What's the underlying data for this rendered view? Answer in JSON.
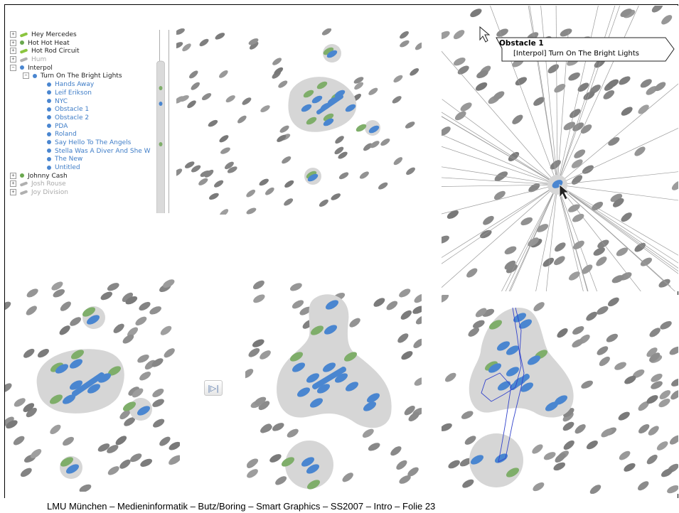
{
  "tree": {
    "items": [
      {
        "label": "Hey Mercedes",
        "icon": "bar-icon",
        "color": "#8bc53f",
        "expander": "+",
        "level": 0,
        "style": "normal"
      },
      {
        "label": "Hot Hot Heat",
        "icon": "dot-icon",
        "color": "#6aa84f",
        "expander": "+",
        "level": 0,
        "style": "normal"
      },
      {
        "label": "Hot Rod Circuit",
        "icon": "bar-icon",
        "color": "#8bc53f",
        "expander": "+",
        "level": 0,
        "style": "normal"
      },
      {
        "label": "Hum",
        "icon": "bar-icon",
        "color": "#b0b0b0",
        "expander": "+",
        "level": 0,
        "style": "grey"
      },
      {
        "label": "Interpol",
        "icon": "dot-icon",
        "color": "#4a86d0",
        "expander": "−",
        "level": 0,
        "style": "normal"
      },
      {
        "label": "Turn On The Bright Lights",
        "icon": "dot-icon",
        "color": "#4a86d0",
        "expander": "−",
        "level": 1,
        "style": "normal"
      },
      {
        "label": "Hands Away",
        "icon": "dot-icon",
        "color": "#4a86d0",
        "expander": "",
        "level": 2,
        "style": "blue"
      },
      {
        "label": "Leif Erikson",
        "icon": "dot-icon",
        "color": "#4a86d0",
        "expander": "",
        "level": 2,
        "style": "blue"
      },
      {
        "label": "NYC",
        "icon": "dot-icon",
        "color": "#4a86d0",
        "expander": "",
        "level": 2,
        "style": "blue"
      },
      {
        "label": "Obstacle 1",
        "icon": "dot-icon",
        "color": "#4a86d0",
        "expander": "",
        "level": 2,
        "style": "blue"
      },
      {
        "label": "Obstacle 2",
        "icon": "dot-icon",
        "color": "#4a86d0",
        "expander": "",
        "level": 2,
        "style": "blue"
      },
      {
        "label": "PDA",
        "icon": "dot-icon",
        "color": "#4a86d0",
        "expander": "",
        "level": 2,
        "style": "blue"
      },
      {
        "label": "Roland",
        "icon": "dot-icon",
        "color": "#4a86d0",
        "expander": "",
        "level": 2,
        "style": "blue"
      },
      {
        "label": "Say Hello To The Angels",
        "icon": "dot-icon",
        "color": "#4a86d0",
        "expander": "",
        "level": 2,
        "style": "blue"
      },
      {
        "label": "Stella Was A Diver And She W",
        "icon": "dot-icon",
        "color": "#4a86d0",
        "expander": "",
        "level": 2,
        "style": "blue"
      },
      {
        "label": "The New",
        "icon": "dot-icon",
        "color": "#4a86d0",
        "expander": "",
        "level": 2,
        "style": "blue"
      },
      {
        "label": "Untitled",
        "icon": "dot-icon",
        "color": "#4a86d0",
        "expander": "",
        "level": 2,
        "style": "blue"
      },
      {
        "label": "Johnny Cash",
        "icon": "dot-icon",
        "color": "#6aa84f",
        "expander": "+",
        "level": 0,
        "style": "normal"
      },
      {
        "label": "Josh Rouse",
        "icon": "bar-icon",
        "color": "#b0b0b0",
        "expander": "+",
        "level": 0,
        "style": "grey"
      },
      {
        "label": "Joy Division",
        "icon": "bar-icon",
        "color": "#b0b0b0",
        "expander": "+",
        "level": 0,
        "style": "grey"
      }
    ]
  },
  "tooltip": {
    "title": "Obstacle 1",
    "subtitle": "[Interpol] Turn On The Bright Lights"
  },
  "skip_button": {
    "label": "|▷|"
  },
  "footer": {
    "text": "LMU München – Medieninformatik – Butz/Boring – Smart Graphics – SS2007 – Intro – Folie 23"
  },
  "colors": {
    "blob": "#d6d6d6",
    "grey_dot": "#8c8c8c",
    "blue_dot": "#4a86d0",
    "green_dot": "#7fae6a",
    "path": "#3344cc"
  }
}
